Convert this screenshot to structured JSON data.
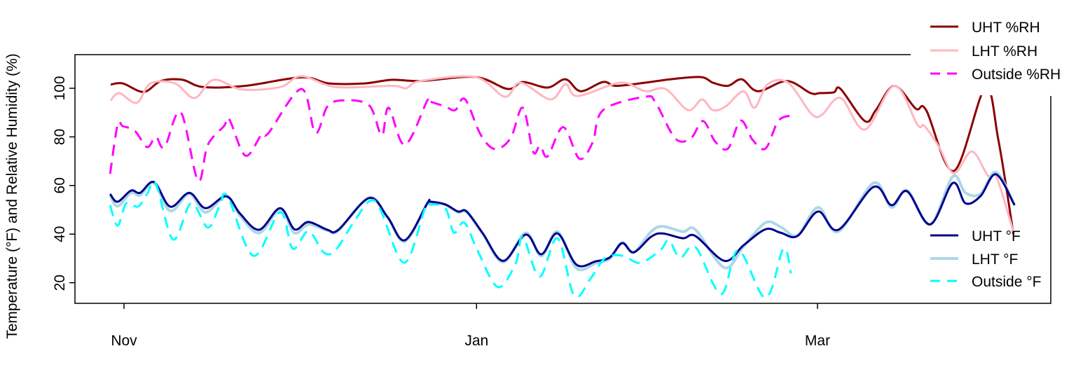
{
  "chart_data": {
    "type": "line",
    "title": "",
    "xlabel": "",
    "ylabel": "Temperature (°F) and Relative Humidity (%)",
    "x_units": "days since Nov 1",
    "xlim": [
      -8.5,
      160.3
    ],
    "ylim": [
      11.4,
      113.8
    ],
    "x_ticks": [
      {
        "label": "Nov",
        "value": 0
      },
      {
        "label": "Jan",
        "value": 61
      },
      {
        "label": "Mar",
        "value": 120
      }
    ],
    "y_ticks": [
      {
        "label": "20",
        "value": 20
      },
      {
        "label": "40",
        "value": 40
      },
      {
        "label": "60",
        "value": 60
      },
      {
        "label": "80",
        "value": 80
      },
      {
        "label": "100",
        "value": 100
      }
    ],
    "grid": false,
    "legends": [
      {
        "placement": "top-right",
        "entries": [
          "UHT %RH",
          "LHT %RH",
          "Outside %RH"
        ]
      },
      {
        "placement": "bottom-right",
        "entries": [
          "UHT °F",
          "LHT °F",
          "Outside °F"
        ]
      }
    ],
    "series": [
      {
        "name": "UHT %RH",
        "color": "#8b0000",
        "dash": false,
        "width": 3,
        "points": [
          [
            -2.3,
            101.5
          ],
          [
            -0.2,
            102
          ],
          [
            3.4,
            98.5
          ],
          [
            6.4,
            103
          ],
          [
            10.1,
            103.5
          ],
          [
            13.7,
            100.5
          ],
          [
            21,
            101
          ],
          [
            30.7,
            104.5
          ],
          [
            35.5,
            102
          ],
          [
            41.6,
            102
          ],
          [
            46.4,
            103.5
          ],
          [
            51.3,
            103
          ],
          [
            60.8,
            104.6
          ],
          [
            66.4,
            99.7
          ],
          [
            69,
            102.6
          ],
          [
            73.3,
            100.3
          ],
          [
            76.4,
            103.7
          ],
          [
            79,
            98.8
          ],
          [
            82.9,
            102.6
          ],
          [
            85.1,
            101
          ],
          [
            90.2,
            102.3
          ],
          [
            94.5,
            103.7
          ],
          [
            99.8,
            104.6
          ],
          [
            101.9,
            102.3
          ],
          [
            104.5,
            101
          ],
          [
            106.9,
            103.7
          ],
          [
            109.7,
            98.8
          ],
          [
            114.7,
            103
          ],
          [
            118.8,
            98
          ],
          [
            120.4,
            98
          ],
          [
            122.8,
            98.3
          ],
          [
            124,
            99.7
          ],
          [
            128.2,
            86.5
          ],
          [
            130.1,
            91
          ],
          [
            133.3,
            101
          ],
          [
            137,
            91.6
          ],
          [
            138.8,
            91
          ],
          [
            143.6,
            66
          ],
          [
            149,
            100
          ],
          [
            151.3,
            78.7
          ],
          [
            153.9,
            40
          ]
        ]
      },
      {
        "name": "LHT %RH",
        "color": "#ffb6c1",
        "dash": false,
        "width": 3,
        "points": [
          [
            -2.3,
            95
          ],
          [
            -0.8,
            98
          ],
          [
            2.2,
            94
          ],
          [
            4.6,
            102
          ],
          [
            8.8,
            102
          ],
          [
            12.2,
            96
          ],
          [
            15.5,
            103.5
          ],
          [
            20.4,
            99.5
          ],
          [
            27,
            100.5
          ],
          [
            30.7,
            105
          ],
          [
            36.7,
            100.5
          ],
          [
            46.4,
            101
          ],
          [
            48.8,
            100
          ],
          [
            51.3,
            103
          ],
          [
            60.8,
            104.6
          ],
          [
            65.9,
            96.5
          ],
          [
            68.6,
            102.3
          ],
          [
            73.8,
            95.4
          ],
          [
            76.4,
            101.7
          ],
          [
            78.5,
            96.8
          ],
          [
            85.9,
            102.3
          ],
          [
            90.2,
            98.8
          ],
          [
            93.7,
            99.7
          ],
          [
            97.6,
            91
          ],
          [
            100,
            95.4
          ],
          [
            101.9,
            91
          ],
          [
            104.1,
            92.5
          ],
          [
            107.2,
            98.8
          ],
          [
            109.1,
            92
          ],
          [
            111.4,
            101.7
          ],
          [
            114.9,
            102.3
          ],
          [
            118.9,
            89.6
          ],
          [
            120.7,
            89
          ],
          [
            124,
            96
          ],
          [
            128.2,
            83
          ],
          [
            133.3,
            101
          ],
          [
            137.3,
            85
          ],
          [
            138.5,
            84.5
          ],
          [
            141,
            76
          ],
          [
            143.6,
            65
          ],
          [
            146.7,
            74
          ],
          [
            149.5,
            64
          ],
          [
            150.9,
            64
          ],
          [
            153.9,
            41
          ]
        ]
      },
      {
        "name": "Outside %RH",
        "color": "#ff00ff",
        "dash": true,
        "width": 3,
        "points": [
          [
            -2.4,
            64.8
          ],
          [
            -1.1,
            85
          ],
          [
            -0.2,
            84.4
          ],
          [
            1.9,
            82.4
          ],
          [
            4,
            75.8
          ],
          [
            5.5,
            80
          ],
          [
            7,
            75.8
          ],
          [
            9.8,
            90.2
          ],
          [
            12.8,
            62
          ],
          [
            14.5,
            76.7
          ],
          [
            17.3,
            84.4
          ],
          [
            18.2,
            87.3
          ],
          [
            21,
            72.3
          ],
          [
            23.8,
            81
          ],
          [
            25,
            81.6
          ],
          [
            30.7,
            99.7
          ],
          [
            33.1,
            81.6
          ],
          [
            35.2,
            92.5
          ],
          [
            37.9,
            95
          ],
          [
            42.4,
            93
          ],
          [
            44.6,
            80.6
          ],
          [
            45.8,
            92
          ],
          [
            48.6,
            76.7
          ],
          [
            52.5,
            95
          ],
          [
            53,
            94.5
          ],
          [
            55.6,
            92.5
          ],
          [
            57.3,
            91
          ],
          [
            59,
            95.5
          ],
          [
            61.7,
            81
          ],
          [
            64.2,
            75
          ],
          [
            66.9,
            79.5
          ],
          [
            69,
            92
          ],
          [
            70.8,
            73.8
          ],
          [
            72,
            76.4
          ],
          [
            73.3,
            72
          ],
          [
            76,
            84
          ],
          [
            78.8,
            71
          ],
          [
            81.1,
            77.8
          ],
          [
            82.9,
            91
          ],
          [
            90.2,
            96.5
          ],
          [
            92,
            94
          ],
          [
            95.4,
            79.3
          ],
          [
            98.1,
            79.5
          ],
          [
            100.2,
            86.5
          ],
          [
            102.3,
            78
          ],
          [
            104.5,
            75.2
          ],
          [
            106.7,
            86.7
          ],
          [
            108.8,
            78.7
          ],
          [
            111,
            75.2
          ],
          [
            113.2,
            86.5
          ],
          [
            115.4,
            88.8
          ]
        ]
      },
      {
        "name": "LHT °F",
        "color": "#add8e6",
        "dash": false,
        "width": 4,
        "points": [
          [
            -2.4,
            56
          ],
          [
            -1.1,
            51.5
          ],
          [
            1.2,
            57
          ],
          [
            2.8,
            56
          ],
          [
            5.2,
            61
          ],
          [
            8,
            49.5
          ],
          [
            11.3,
            56.5
          ],
          [
            14.1,
            49
          ],
          [
            17.7,
            55.6
          ],
          [
            20.1,
            47.5
          ],
          [
            23.4,
            40.5
          ],
          [
            27,
            50
          ],
          [
            29.5,
            40.5
          ],
          [
            31.9,
            44
          ],
          [
            35.2,
            41.5
          ],
          [
            37.1,
            41.5
          ],
          [
            42.4,
            55
          ],
          [
            45.6,
            47
          ],
          [
            48.6,
            37
          ],
          [
            52.5,
            52.7
          ],
          [
            53,
            53.3
          ],
          [
            55.6,
            52.2
          ],
          [
            57.8,
            49
          ],
          [
            59.3,
            49
          ],
          [
            62.1,
            40
          ],
          [
            65.6,
            28.5
          ],
          [
            69.5,
            40.5
          ],
          [
            72.2,
            31
          ],
          [
            75,
            41
          ],
          [
            78.3,
            26
          ],
          [
            81.6,
            28
          ],
          [
            84.1,
            30
          ],
          [
            86.2,
            36.5
          ],
          [
            88.2,
            32.5
          ],
          [
            91.2,
            41
          ],
          [
            93.2,
            43.2
          ],
          [
            96.7,
            41
          ],
          [
            98.9,
            41.8
          ],
          [
            103.9,
            26.2
          ],
          [
            107.2,
            35
          ],
          [
            111,
            44.7
          ],
          [
            113.6,
            43
          ],
          [
            116.5,
            39.5
          ],
          [
            120.1,
            51
          ],
          [
            123.6,
            41
          ],
          [
            129.7,
            61
          ],
          [
            132.8,
            51
          ],
          [
            135.5,
            58
          ],
          [
            139.5,
            44
          ],
          [
            143.4,
            63.7
          ],
          [
            145.6,
            57
          ],
          [
            148.2,
            56.5
          ],
          [
            150.9,
            65.5
          ],
          [
            154.1,
            52
          ]
        ]
      },
      {
        "name": "UHT °F",
        "color": "#00008b",
        "dash": false,
        "width": 3,
        "points": [
          [
            -2.4,
            56.5
          ],
          [
            -1.1,
            53.3
          ],
          [
            1.2,
            57.9
          ],
          [
            2.8,
            57
          ],
          [
            5.2,
            61.4
          ],
          [
            8,
            51.3
          ],
          [
            11.3,
            57
          ],
          [
            14.1,
            50.7
          ],
          [
            17.7,
            55.6
          ],
          [
            20.1,
            48.4
          ],
          [
            23.4,
            41.8
          ],
          [
            27,
            50.7
          ],
          [
            29.5,
            42
          ],
          [
            31.9,
            45
          ],
          [
            35.2,
            41.8
          ],
          [
            37.1,
            41.8
          ],
          [
            42.4,
            54.8
          ],
          [
            45.6,
            47
          ],
          [
            48.6,
            37.5
          ],
          [
            52.5,
            52.7
          ],
          [
            53,
            53.3
          ],
          [
            55.6,
            52.2
          ],
          [
            57.8,
            49.3
          ],
          [
            59.3,
            49.3
          ],
          [
            62.1,
            40.3
          ],
          [
            65.6,
            29
          ],
          [
            69.5,
            39.8
          ],
          [
            72.2,
            31.7
          ],
          [
            75,
            40.3
          ],
          [
            78.3,
            27.4
          ],
          [
            81.6,
            28.8
          ],
          [
            84.1,
            30.5
          ],
          [
            86.2,
            36.3
          ],
          [
            88.2,
            32.5
          ],
          [
            91.2,
            38.9
          ],
          [
            93.2,
            40.3
          ],
          [
            96.7,
            38.3
          ],
          [
            98.9,
            39.2
          ],
          [
            103.9,
            29
          ],
          [
            107.2,
            35.4
          ],
          [
            111,
            42
          ],
          [
            113.6,
            40.6
          ],
          [
            116.5,
            39.2
          ],
          [
            120.1,
            49.3
          ],
          [
            123.6,
            41.8
          ],
          [
            129.7,
            59.4
          ],
          [
            132.8,
            51.9
          ],
          [
            135.5,
            57.6
          ],
          [
            139.5,
            44
          ],
          [
            143.4,
            61
          ],
          [
            145.6,
            52.7
          ],
          [
            148.2,
            55.6
          ],
          [
            150.9,
            64.6
          ],
          [
            154.1,
            51.9
          ]
        ]
      },
      {
        "name": "Outside °F",
        "color": "#00ffff",
        "dash": true,
        "width": 3,
        "points": [
          [
            -2.4,
            51.9
          ],
          [
            -1.1,
            43.5
          ],
          [
            0.4,
            52.7
          ],
          [
            2.4,
            51.3
          ],
          [
            4,
            56.5
          ],
          [
            5.5,
            60.8
          ],
          [
            8.5,
            37.8
          ],
          [
            11.6,
            52.7
          ],
          [
            14.5,
            42.7
          ],
          [
            16.5,
            51.3
          ],
          [
            17.9,
            55.6
          ],
          [
            22.4,
            31.1
          ],
          [
            27,
            49
          ],
          [
            29.2,
            34
          ],
          [
            31.9,
            41.2
          ],
          [
            34.5,
            32.6
          ],
          [
            36.5,
            33.1
          ],
          [
            39.5,
            44
          ],
          [
            42.5,
            53.6
          ],
          [
            44.4,
            49.9
          ],
          [
            48.5,
            28.2
          ],
          [
            52.1,
            50.7
          ],
          [
            53,
            52.2
          ],
          [
            55.6,
            50.7
          ],
          [
            57.1,
            40.6
          ],
          [
            58.9,
            44.7
          ],
          [
            61.2,
            33.1
          ],
          [
            64.7,
            18.2
          ],
          [
            67.8,
            28.2
          ],
          [
            69,
            38.9
          ],
          [
            71.9,
            22.5
          ],
          [
            75,
            38.3
          ],
          [
            77.9,
            14.7
          ],
          [
            80.7,
            21.6
          ],
          [
            83.3,
            30.3
          ],
          [
            86.3,
            31.1
          ],
          [
            89.3,
            28.2
          ],
          [
            92.8,
            33.4
          ],
          [
            94.3,
            37.5
          ],
          [
            96.2,
            30.3
          ],
          [
            98.9,
            34.6
          ],
          [
            103.3,
            15.3
          ],
          [
            106.3,
            33.4
          ],
          [
            111,
            13.8
          ],
          [
            114.1,
            34
          ],
          [
            115.4,
            23.9
          ]
        ]
      }
    ]
  }
}
